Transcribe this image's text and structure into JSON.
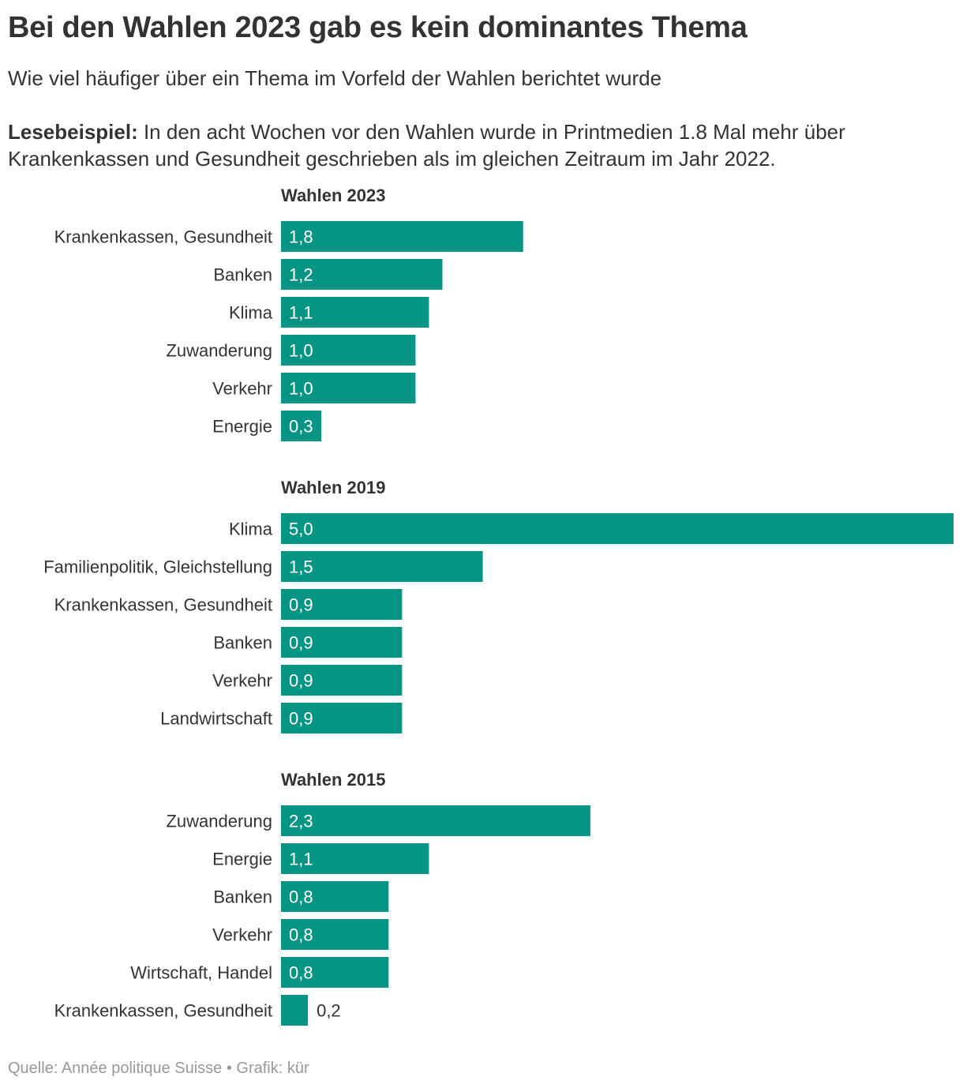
{
  "header": {
    "title": "Bei den Wahlen 2023 gab es kein dominantes Thema",
    "subtitle": "Wie viel häufiger über ein Thema im Vorfeld der Wahlen berichtet wurde",
    "reading_lead": "Lesebeispiel:",
    "reading_text": " In den acht Wochen vor den Wahlen wurde in Printmedien 1.8 Mal mehr über Krankenkassen und Gesundheit geschrieben als im gleichen Zeitraum im Jahr 2022."
  },
  "footer": {
    "source": "Quelle: Année politique Suisse • Grafik: kür"
  },
  "colors": {
    "bar": "#069484",
    "label_inside": "#ffffff",
    "label_outside": "#333333"
  },
  "chart_data": [
    {
      "type": "bar",
      "orientation": "horizontal",
      "title": "Wahlen 2023",
      "categories": [
        "Krankenkassen, Gesundheit",
        "Banken",
        "Klima",
        "Zuwanderung",
        "Verkehr",
        "Energie"
      ],
      "values": [
        1.8,
        1.2,
        1.1,
        1.0,
        1.0,
        0.3
      ],
      "value_labels": [
        "1,8",
        "1,2",
        "1,1",
        "1,0",
        "1,0",
        "0,3"
      ],
      "xlim": [
        0,
        5.0
      ]
    },
    {
      "type": "bar",
      "orientation": "horizontal",
      "title": "Wahlen 2019",
      "categories": [
        "Klima",
        "Familienpolitik, Gleichstellung",
        "Krankenkassen, Gesundheit",
        "Banken",
        "Verkehr",
        "Landwirtschaft"
      ],
      "values": [
        5.0,
        1.5,
        0.9,
        0.9,
        0.9,
        0.9
      ],
      "value_labels": [
        "5,0",
        "1,5",
        "0,9",
        "0,9",
        "0,9",
        "0,9"
      ],
      "xlim": [
        0,
        5.0
      ]
    },
    {
      "type": "bar",
      "orientation": "horizontal",
      "title": "Wahlen 2015",
      "categories": [
        "Zuwanderung",
        "Energie",
        "Banken",
        "Verkehr",
        "Wirtschaft, Handel",
        "Krankenkassen, Gesundheit"
      ],
      "values": [
        2.3,
        1.1,
        0.8,
        0.8,
        0.8,
        0.2
      ],
      "value_labels": [
        "2,3",
        "1,1",
        "0,8",
        "0,8",
        "0,8",
        "0,2"
      ],
      "xlim": [
        0,
        5.0
      ]
    }
  ]
}
